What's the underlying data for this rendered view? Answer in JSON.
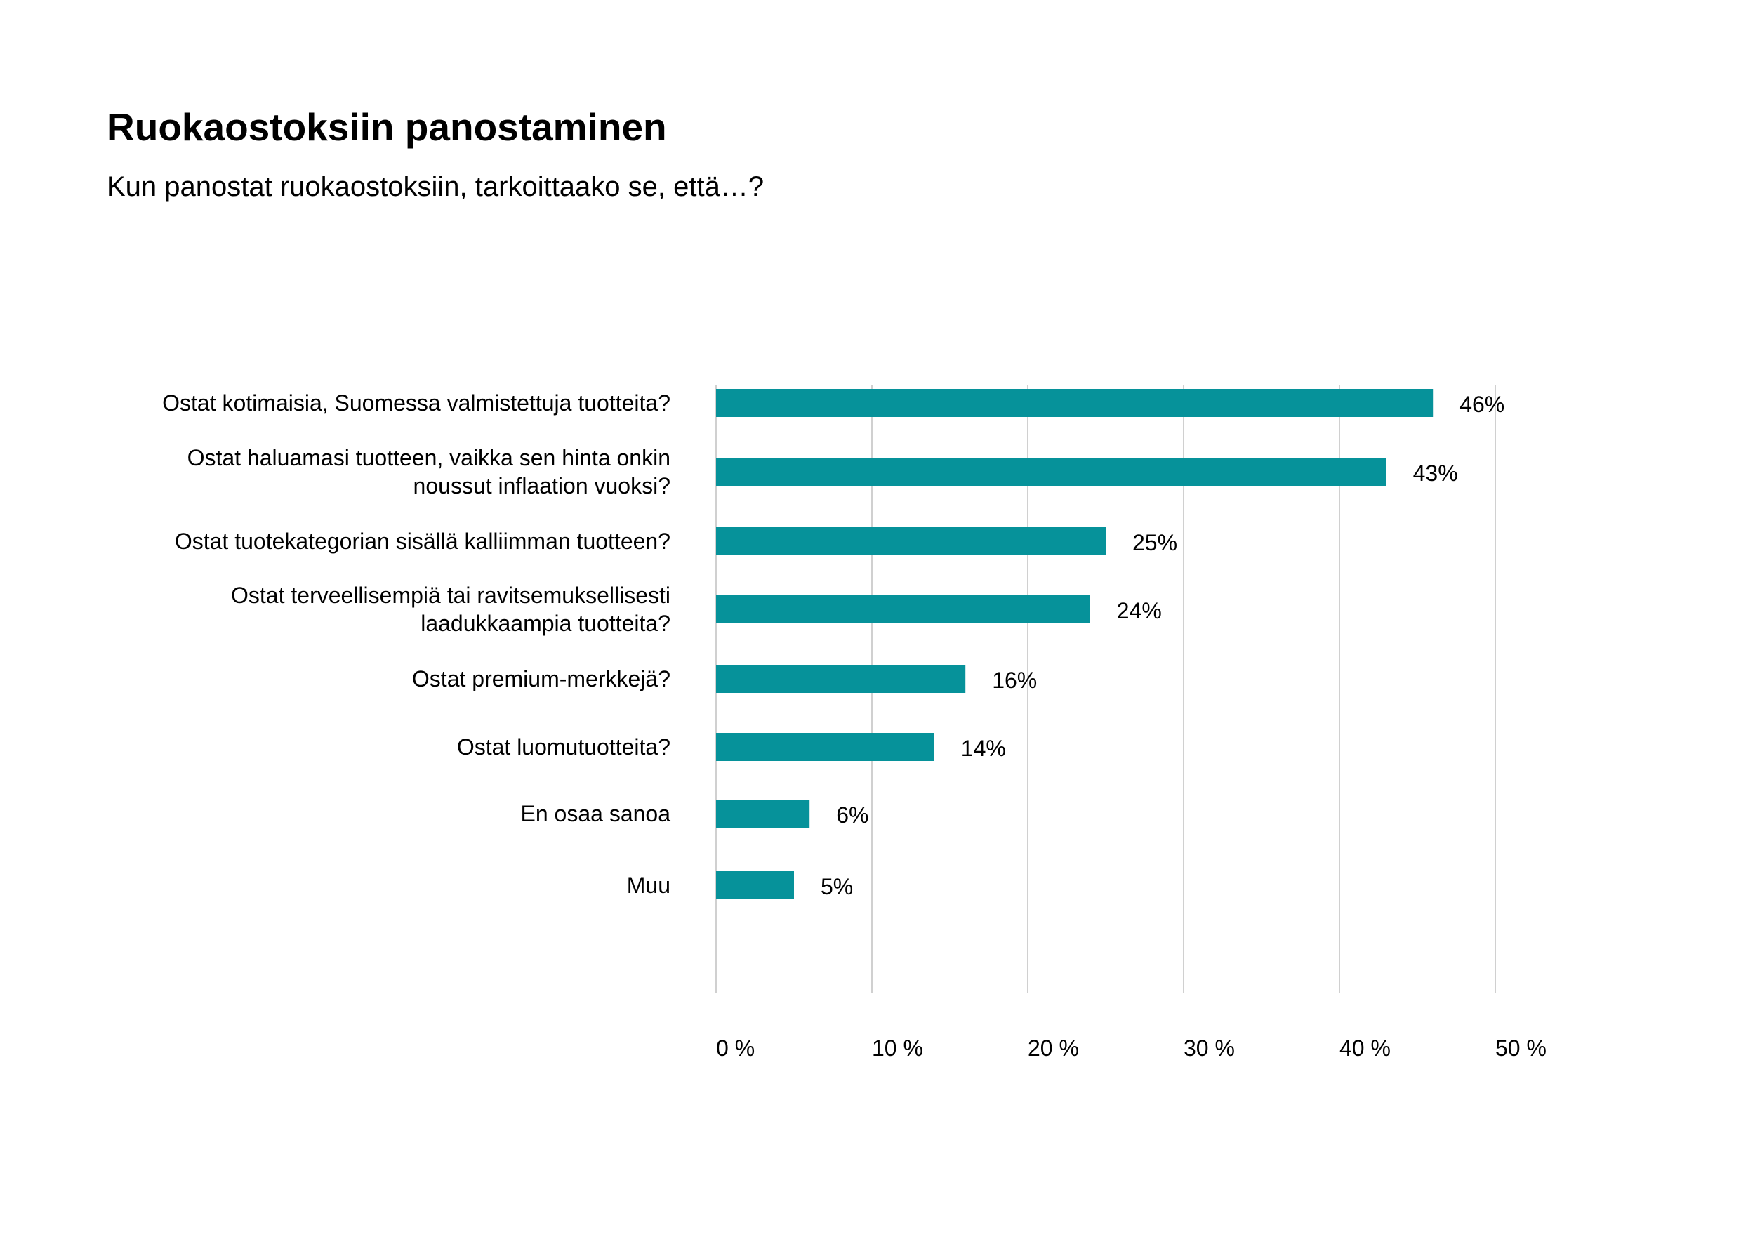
{
  "header": {
    "title": "Ruokaostoksiin panostaminen",
    "subtitle": "Kun panostat ruokaostoksiin, tarkoittaako se, että…?"
  },
  "colors": {
    "bar": "#06929A",
    "gridline": "#D0D0D0",
    "text": "#000000"
  },
  "chart_data": {
    "type": "bar",
    "orientation": "horizontal",
    "title": "Ruokaostoksiin panostaminen",
    "subtitle": "Kun panostat ruokaostoksiin, tarkoittaako se, että…?",
    "categories": [
      [
        "Ostat kotimaisia, Suomessa valmistettuja tuotteita?"
      ],
      [
        "Ostat haluamasi tuotteen, vaikka sen hinta onkin",
        "noussut inflaation vuoksi?"
      ],
      [
        "Ostat tuotekategorian sisällä kalliimman tuotteen?"
      ],
      [
        "Ostat terveellisempiä tai ravitsemuksellisesti",
        "laadukkaampia tuotteita?"
      ],
      [
        "Ostat premium-merkkejä?"
      ],
      [
        "Ostat luomutuotteita?"
      ],
      [
        "En osaa sanoa"
      ],
      [
        "Muu"
      ]
    ],
    "values": [
      46,
      43,
      25,
      24,
      16,
      14,
      6,
      5
    ],
    "value_labels": [
      "46%",
      "43%",
      "25%",
      "24%",
      "16%",
      "14%",
      "6%",
      "5%"
    ],
    "xlim": [
      0,
      50
    ],
    "xticks": [
      0,
      10,
      20,
      30,
      40,
      50
    ],
    "xtick_labels": [
      "0 %",
      "10 %",
      "20 %",
      "30 %",
      "40 %",
      "50 %"
    ],
    "grid": "vertical",
    "legend": "none"
  }
}
